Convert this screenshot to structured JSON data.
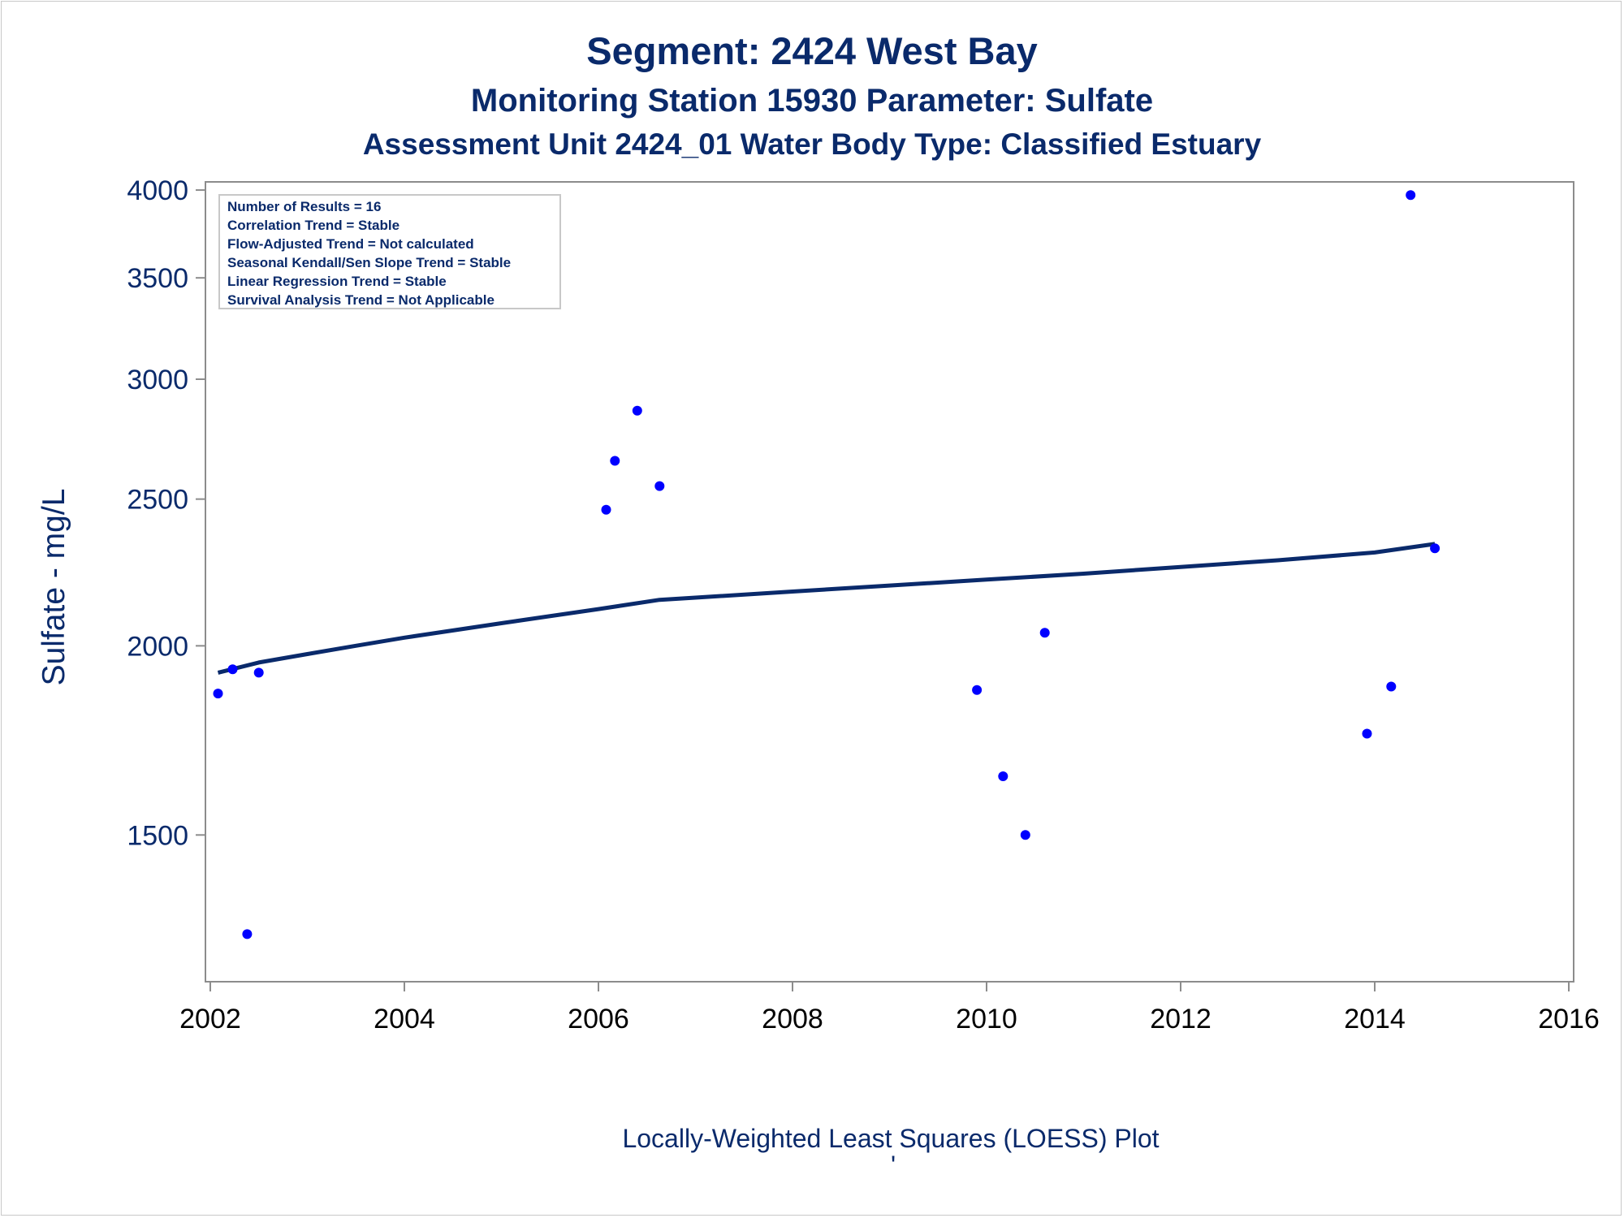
{
  "titles": {
    "line1": "Segment: 2424  West Bay",
    "line2": "Monitoring Station 15930 Parameter: Sulfate",
    "line3": "Assessment Unit 2424_01   Water Body Type: Classified Estuary"
  },
  "footnote": {
    "text": "Locally-Weighted Least Squares (LOESS) Plot",
    "mark": "'"
  },
  "inset": {
    "lines": [
      "Number of Results = 16",
      "Correlation Trend = Stable",
      "Flow-Adjusted Trend = Not calculated",
      "Seasonal Kendall/Sen Slope Trend = Stable",
      "Linear Regression Trend = Stable",
      "Survival Analysis Trend = Not Applicable"
    ]
  },
  "colors": {
    "text": "#0a2a6b",
    "points": "#0000ff",
    "loess_line": "#0a2a6b",
    "axis": "#8c8c8c"
  },
  "chart_data": {
    "type": "scatter",
    "title": "Segment: 2424  West Bay",
    "xlabel": "",
    "ylabel": "Sulfate - mg/L",
    "yscale": "log",
    "xlim": [
      2001.95,
      2016.05
    ],
    "ylim": [
      1200,
      4050
    ],
    "xticks": [
      2002,
      2004,
      2006,
      2008,
      2010,
      2012,
      2014,
      2016
    ],
    "yticks": [
      1500,
      2000,
      2500,
      3000,
      3500,
      4000
    ],
    "grid": false,
    "series": [
      {
        "kind": "scatter",
        "x": [
          2002.08,
          2002.23,
          2002.38,
          2002.5,
          2006.08,
          2006.17,
          2006.4,
          2006.63,
          2009.9,
          2010.17,
          2010.4,
          2010.6,
          2013.92,
          2014.17,
          2014.37,
          2014.62
        ],
        "y": [
          1860,
          1930,
          1290,
          1920,
          2460,
          2650,
          2860,
          2550,
          1870,
          1640,
          1500,
          2040,
          1750,
          1880,
          3970,
          2320
        ]
      },
      {
        "kind": "line",
        "x": [
          2002.08,
          2002.5,
          2003.0,
          2003.5,
          2004.0,
          2005.0,
          2006.0,
          2006.63,
          2007.0,
          2008.0,
          2009.0,
          2010.0,
          2011.0,
          2012.0,
          2013.0,
          2014.0,
          2014.62
        ],
        "y": [
          1920,
          1950,
          1975,
          2000,
          2025,
          2070,
          2115,
          2145,
          2152,
          2172,
          2192,
          2212,
          2232,
          2255,
          2278,
          2305,
          2335
        ]
      }
    ]
  }
}
